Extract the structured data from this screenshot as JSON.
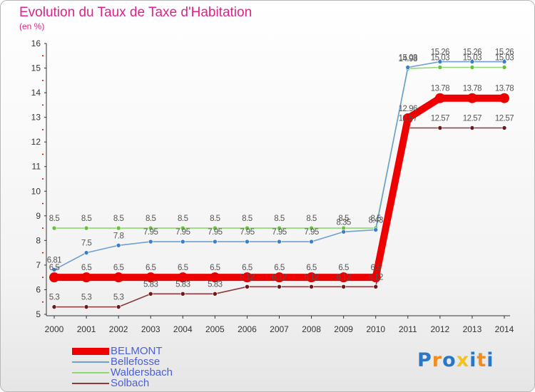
{
  "title": "Evolution du Taux de Taxe d'Habitation",
  "subtitle": "(en %)",
  "logo": {
    "letters": [
      "P",
      "r",
      "o",
      "x",
      "i",
      "t",
      "i"
    ],
    "colors": [
      "#2a77c7",
      "#f28c1e",
      "#2a77c7",
      "#f2c21e",
      "#2a77c7",
      "#f28c1e",
      "#2a77c7"
    ]
  },
  "chart_data": {
    "type": "line",
    "title": "Evolution du Taux de Taxe d'Habitation",
    "ylabel": "(en %)",
    "xlabel": "",
    "ylim": [
      5,
      16
    ],
    "y_ticks": [
      "5",
      "6",
      "7",
      "8",
      "9",
      "10",
      "11",
      "12",
      "13",
      "14",
      "15",
      "16"
    ],
    "grid": false,
    "legend_position": "bottom-left",
    "x": [
      "2000",
      "2001",
      "2002",
      "2003",
      "2004",
      "2005",
      "2006",
      "2007",
      "2008",
      "2009",
      "2010",
      "2011",
      "2012",
      "2013",
      "2014"
    ],
    "series": [
      {
        "name": "BELMONT",
        "color": "#ee0000",
        "marker": "#ee0000",
        "values": [
          6.5,
          6.5,
          6.5,
          6.5,
          6.5,
          6.5,
          6.5,
          6.5,
          6.5,
          6.5,
          6.5,
          12.96,
          13.78,
          13.78,
          13.78
        ],
        "labels": [
          "6.5",
          "6.5",
          "6.5",
          "6.5",
          "6.5",
          "6.5",
          "6.5",
          "6.5",
          "6.5",
          "6.5",
          "6.5",
          "12.96",
          "13.78",
          "13.78",
          "13.78"
        ]
      },
      {
        "name": "Bellefosse",
        "color": "#6fa0d0",
        "marker": "#3a7fc8",
        "values": [
          6.81,
          7.5,
          7.8,
          7.95,
          7.95,
          7.95,
          7.95,
          7.95,
          7.95,
          8.35,
          8.43,
          15.03,
          15.26,
          15.26,
          15.26
        ],
        "labels": [
          "6.81",
          "7.5",
          "7.8",
          "7.95",
          "7.95",
          "7.95",
          "7.95",
          "7.95",
          "7.95",
          "8.35",
          "8.43",
          "15.03",
          "15.26",
          "15.26",
          "15.26"
        ]
      },
      {
        "name": "Waldersbach",
        "color": "#90d870",
        "marker": "#64c23c",
        "values": [
          8.5,
          8.5,
          8.5,
          8.5,
          8.5,
          8.5,
          8.5,
          8.5,
          8.5,
          8.5,
          8.5,
          14.98,
          15.03,
          15.03,
          15.03
        ],
        "labels": [
          "8.5",
          "8.5",
          "8.5",
          "8.5",
          "8.5",
          "8.5",
          "8.5",
          "8.5",
          "8.5",
          "8.5",
          "8.5",
          "14.98",
          "15.03",
          "15.03",
          "15.03"
        ]
      },
      {
        "name": "Solbach",
        "color": "#8a3a3a",
        "marker": "#6a1a1a",
        "values": [
          5.3,
          5.3,
          5.3,
          5.83,
          5.83,
          5.83,
          6.12,
          6.12,
          6.12,
          6.12,
          6.12,
          12.57,
          12.57,
          12.57,
          12.57
        ],
        "labels": [
          "5.3",
          "5.3",
          "5.3",
          "5.83",
          "5.83",
          "5.83",
          "6.12",
          "6.12",
          "6.12",
          "6.12",
          "6.12",
          "12.57",
          "12.57",
          "12.57",
          "12.57"
        ]
      }
    ]
  }
}
